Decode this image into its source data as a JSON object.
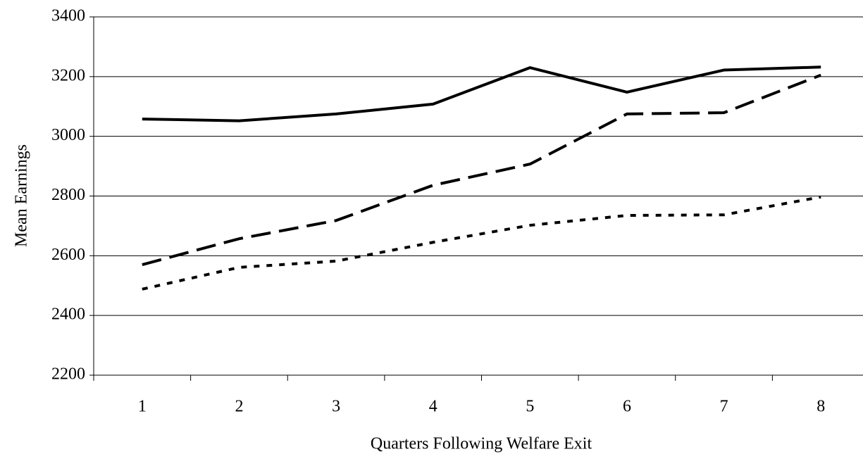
{
  "chart_data": {
    "type": "line",
    "xlabel": "Quarters Following Welfare Exit",
    "ylabel": "Mean Earnings",
    "categories": [
      "1",
      "2",
      "3",
      "4",
      "5",
      "6",
      "7",
      "8"
    ],
    "series": [
      {
        "color": "#000000",
        "dash": "solid",
        "values": [
          3058,
          3052,
          3075,
          3108,
          3230,
          3148,
          3222,
          3232
        ]
      },
      {
        "color": "#000000",
        "dash": "dashed",
        "values": [
          2570,
          2657,
          2718,
          2836,
          2907,
          3075,
          3079,
          3205
        ]
      },
      {
        "color": "#000000",
        "dash": "dotted",
        "values": [
          2488,
          2561,
          2582,
          2645,
          2702,
          2735,
          2737,
          2797
        ]
      }
    ],
    "ylim": [
      2200,
      3400
    ],
    "yticks": [
      2200,
      2400,
      2600,
      2800,
      3000,
      3200,
      3400
    ],
    "grid": true
  }
}
